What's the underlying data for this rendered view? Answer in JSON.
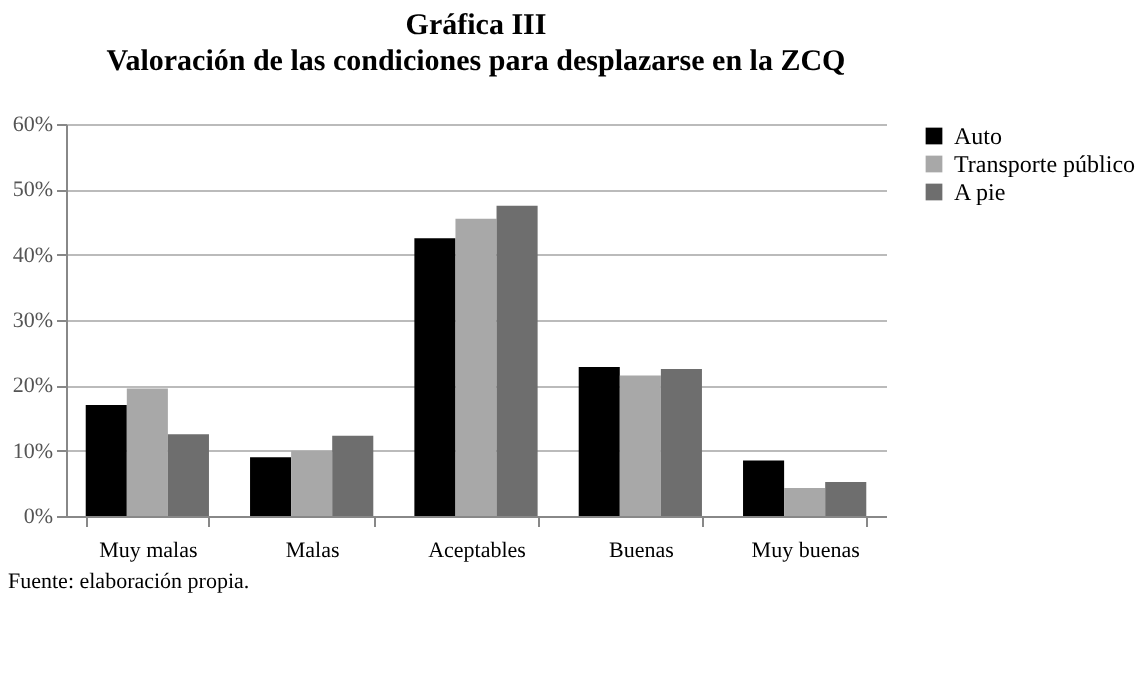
{
  "chart_data": {
    "type": "bar",
    "title": "Gráfica III",
    "subtitle": "Valoración de las condiciones para desplazarse en la ZCQ",
    "categories": [
      "Muy malas",
      "Malas",
      "Aceptables",
      "Buenas",
      "Muy buenas"
    ],
    "series": [
      {
        "name": "Auto",
        "color": "#000000",
        "values": [
          17,
          9,
          42.5,
          22.8,
          8.5
        ]
      },
      {
        "name": "Transporte público",
        "color": "#a8a8a8",
        "values": [
          19.5,
          10,
          45.5,
          21.5,
          4.3
        ]
      },
      {
        "name": "A pie",
        "color": "#6e6e6e",
        "values": [
          12.5,
          12.3,
          47.5,
          22.5,
          5.2
        ]
      }
    ],
    "ylim": [
      0,
      60
    ],
    "yticks": [
      {
        "value": 0,
        "label": "0%"
      },
      {
        "value": 10,
        "label": "10%"
      },
      {
        "value": 20,
        "label": "20%"
      },
      {
        "value": 30,
        "label": "30%"
      },
      {
        "value": 40,
        "label": "40%"
      },
      {
        "value": 50,
        "label": "50%"
      },
      {
        "value": 60,
        "label": "60%"
      }
    ],
    "grid": "y",
    "legend": "right",
    "annotations": [
      "Fuente: elaboración propia."
    ]
  }
}
